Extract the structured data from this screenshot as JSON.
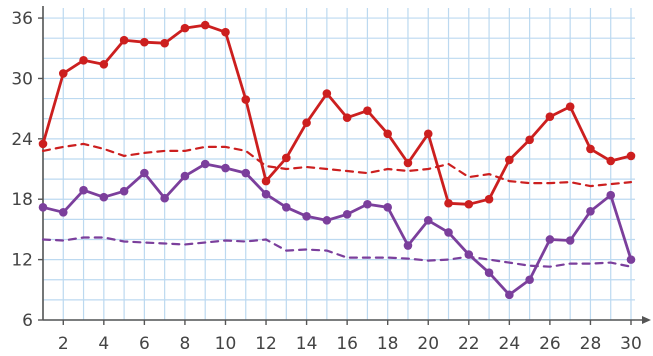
{
  "chart_data": {
    "type": "line",
    "title": "",
    "xlabel": "",
    "ylabel": "",
    "xlim": [
      1,
      30
    ],
    "ylim": [
      6,
      37
    ],
    "x_ticks": [
      "2",
      "4",
      "6",
      "8",
      "10",
      "12",
      "14",
      "16",
      "18",
      "20",
      "22",
      "24",
      "26",
      "28",
      "30"
    ],
    "y_ticks": [
      "6",
      "12",
      "18",
      "24",
      "30",
      "36"
    ],
    "grid": true,
    "x": [
      1,
      2,
      3,
      4,
      5,
      6,
      7,
      8,
      9,
      10,
      11,
      12,
      13,
      14,
      15,
      16,
      17,
      18,
      19,
      20,
      21,
      22,
      23,
      24,
      25,
      26,
      27,
      28,
      29,
      30
    ],
    "series": [
      {
        "color": "#cc1f1f",
        "style": "solid",
        "markers": true,
        "values": [
          23.5,
          30.5,
          31.8,
          31.4,
          33.8,
          33.6,
          33.5,
          35.0,
          35.3,
          34.6,
          27.9,
          19.8,
          22.1,
          25.6,
          28.5,
          26.1,
          26.8,
          24.5,
          21.6,
          24.5,
          17.6,
          17.5,
          18.0,
          21.9,
          23.9,
          26.2,
          27.2,
          23.0,
          21.8,
          22.3
        ]
      },
      {
        "color": "#cc1f1f",
        "style": "dashed",
        "markers": false,
        "values": [
          22.8,
          23.2,
          23.5,
          23.0,
          22.3,
          22.6,
          22.8,
          22.8,
          23.2,
          23.2,
          22.8,
          21.3,
          21.0,
          21.2,
          21.0,
          20.8,
          20.6,
          21.0,
          20.8,
          21.0,
          21.5,
          20.2,
          20.5,
          19.8,
          19.6,
          19.6,
          19.7,
          19.3,
          19.5,
          19.7
        ]
      },
      {
        "color": "#7b3f9c",
        "style": "solid",
        "markers": true,
        "values": [
          17.2,
          16.7,
          18.9,
          18.2,
          18.8,
          20.6,
          18.1,
          20.3,
          21.5,
          21.1,
          20.6,
          18.5,
          17.2,
          16.3,
          15.9,
          16.5,
          17.5,
          17.2,
          13.4,
          15.9,
          14.7,
          12.5,
          10.7,
          8.5,
          10.0,
          14.0,
          13.9,
          16.8,
          18.4,
          12.0
        ]
      },
      {
        "color": "#7b3f9c",
        "style": "dashed",
        "markers": false,
        "values": [
          14.0,
          13.9,
          14.2,
          14.2,
          13.8,
          13.7,
          13.6,
          13.5,
          13.7,
          13.9,
          13.8,
          14.0,
          12.9,
          13.0,
          12.9,
          12.2,
          12.2,
          12.2,
          12.1,
          11.9,
          12.0,
          12.3,
          12.0,
          11.7,
          11.4,
          11.3,
          11.6,
          11.6,
          11.7,
          11.3
        ]
      }
    ]
  }
}
